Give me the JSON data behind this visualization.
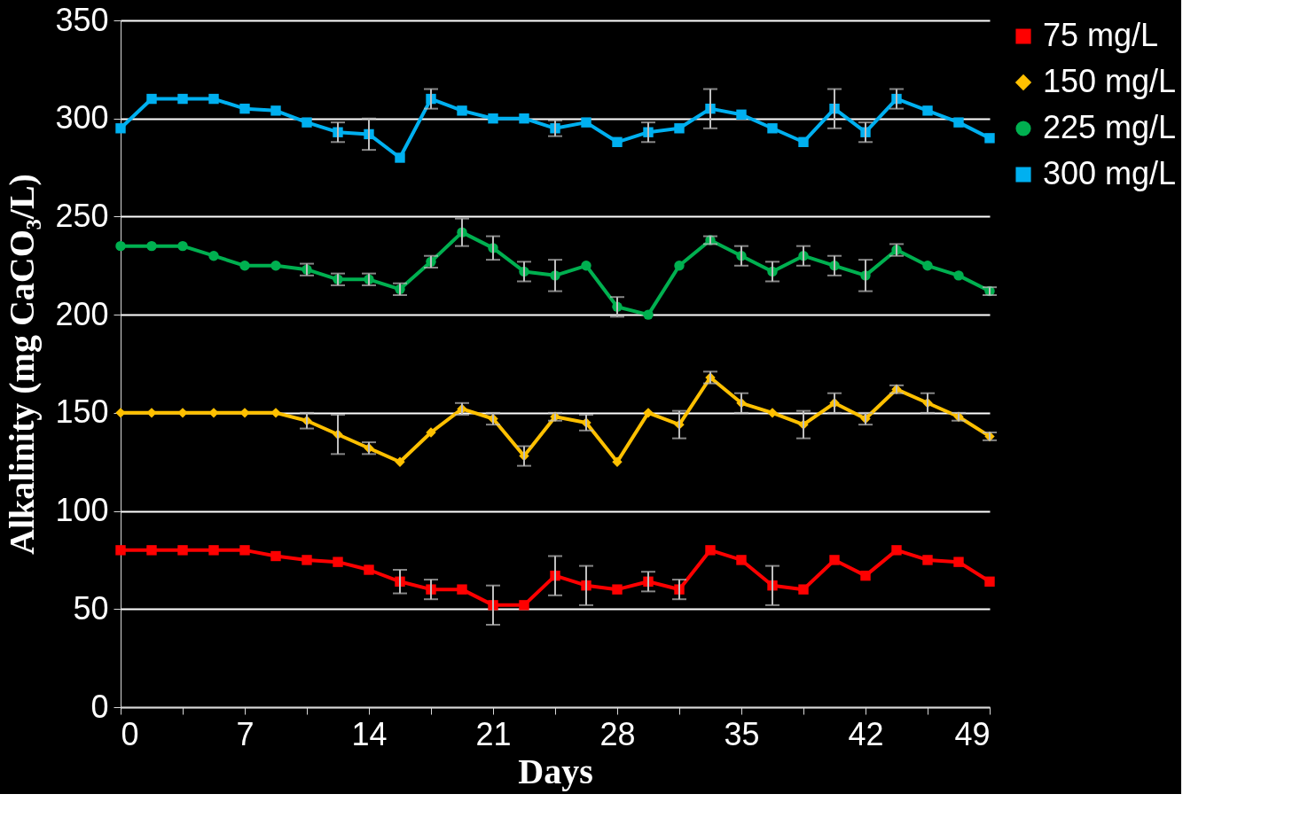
{
  "chart_data": {
    "type": "line",
    "xlabel": "Days",
    "ylabel": "Alkalinity (mg CaCO₃/L)",
    "x": [
      0,
      1.75,
      3.5,
      5.25,
      7,
      8.75,
      10.5,
      12.25,
      14,
      15.75,
      17.5,
      19.25,
      21,
      22.75,
      24.5,
      26.25,
      28,
      29.75,
      31.5,
      33.25,
      35,
      36.75,
      38.5,
      40.25,
      42,
      43.75,
      45.5,
      47.25,
      49
    ],
    "xlim": [
      0,
      49
    ],
    "xticks": [
      0,
      {
        "value": 3.5,
        "label": null
      },
      7,
      {
        "value": 10.5,
        "label": null
      },
      14,
      {
        "value": 17.5,
        "label": null
      },
      21,
      {
        "value": 24.5,
        "label": null
      },
      28,
      {
        "value": 31.5,
        "label": null
      },
      35,
      {
        "value": 38.5,
        "label": null
      },
      42,
      {
        "value": 45.5,
        "label": null
      },
      49
    ],
    "ylim": [
      0,
      350
    ],
    "yticks": [
      0,
      50,
      100,
      150,
      200,
      250,
      300,
      350
    ],
    "grid": "y",
    "legend": "right",
    "line_style": "solid",
    "series": [
      {
        "name": "75 mg/L",
        "color": "#ff0000",
        "marker": "square",
        "values": [
          80,
          80,
          80,
          80,
          80,
          77,
          75,
          74,
          70,
          64,
          60,
          60,
          52,
          52,
          67,
          62,
          60,
          64,
          60,
          80,
          75,
          62,
          60,
          75,
          67,
          80,
          75,
          74,
          64
        ],
        "errors": [
          null,
          null,
          null,
          null,
          null,
          null,
          null,
          null,
          null,
          6,
          5,
          null,
          10,
          null,
          10,
          10,
          null,
          5,
          5,
          null,
          null,
          10,
          null,
          null,
          null,
          null,
          null,
          null,
          null
        ]
      },
      {
        "name": "150 mg/L",
        "color": "#ffc000",
        "marker": "diamond",
        "values": [
          150,
          150,
          150,
          150,
          150,
          150,
          146,
          139,
          132,
          125,
          140,
          152,
          147,
          128,
          148,
          145,
          125,
          150,
          144,
          168,
          155,
          150,
          144,
          155,
          147,
          162,
          155,
          148,
          138
        ],
        "errors": [
          null,
          null,
          null,
          null,
          null,
          null,
          4,
          10,
          3,
          null,
          null,
          3,
          3,
          5,
          2,
          4,
          null,
          null,
          7,
          3,
          5,
          null,
          7,
          5,
          3,
          2,
          5,
          2,
          2
        ]
      },
      {
        "name": "225 mg/L",
        "color": "#00b050",
        "marker": "circle",
        "values": [
          235,
          235,
          235,
          230,
          225,
          225,
          223,
          218,
          218,
          213,
          227,
          242,
          234,
          222,
          220,
          225,
          204,
          200,
          225,
          238,
          230,
          222,
          230,
          225,
          220,
          233,
          225,
          220,
          212
        ],
        "errors": [
          null,
          null,
          null,
          null,
          null,
          null,
          3,
          3,
          3,
          3,
          3,
          7,
          6,
          5,
          8,
          null,
          5,
          null,
          null,
          2,
          5,
          5,
          5,
          5,
          8,
          3,
          null,
          null,
          2
        ]
      },
      {
        "name": "300 mg/L",
        "color": "#00b0f0",
        "marker": "square",
        "values": [
          295,
          310,
          310,
          310,
          305,
          304,
          298,
          293,
          292,
          280,
          310,
          304,
          300,
          300,
          295,
          298,
          288,
          293,
          295,
          305,
          302,
          295,
          288,
          305,
          293,
          310,
          304,
          298,
          290
        ],
        "errors": [
          null,
          null,
          null,
          null,
          null,
          null,
          null,
          5,
          8,
          null,
          5,
          null,
          null,
          null,
          4,
          null,
          null,
          5,
          null,
          10,
          null,
          null,
          null,
          10,
          5,
          5,
          null,
          null,
          null
        ]
      }
    ]
  }
}
